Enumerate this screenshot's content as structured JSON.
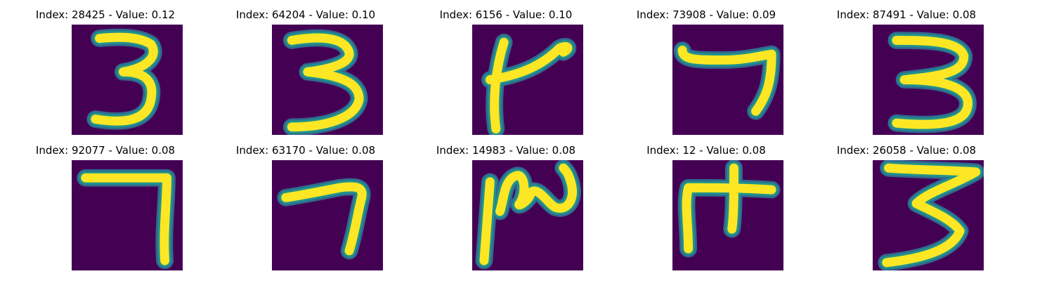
{
  "colors": {
    "background": "#440154",
    "stroke_core": "#fde725",
    "stroke_edge": "#21918c",
    "stroke_halo": "#31688e"
  },
  "chart_data": [
    {
      "type": "heatmap",
      "title": "Index: 28425 - Value: 0.12",
      "digit_shape": "three"
    },
    {
      "type": "heatmap",
      "title": "Index: 64204 - Value: 0.10",
      "digit_shape": "three-wide"
    },
    {
      "type": "heatmap",
      "title": "Index: 6156 - Value: 0.10",
      "digit_shape": "seven-flag"
    },
    {
      "type": "heatmap",
      "title": "Index: 73908 - Value: 0.09",
      "digit_shape": "seven-hook"
    },
    {
      "type": "heatmap",
      "title": "Index: 87491 - Value: 0.08",
      "digit_shape": "three-bold"
    },
    {
      "type": "heatmap",
      "title": "Index: 92077 - Value: 0.08",
      "digit_shape": "seven-square"
    },
    {
      "type": "heatmap",
      "title": "Index: 63170 - Value: 0.08",
      "digit_shape": "seven-angle"
    },
    {
      "type": "heatmap",
      "title": "Index: 14983 - Value: 0.08",
      "digit_shape": "squiggle"
    },
    {
      "type": "heatmap",
      "title": "Index: 12 - Value: 0.08",
      "digit_shape": "seven-cross"
    },
    {
      "type": "heatmap",
      "title": "Index: 26058 - Value: 0.08",
      "digit_shape": "three-zigzag"
    }
  ]
}
